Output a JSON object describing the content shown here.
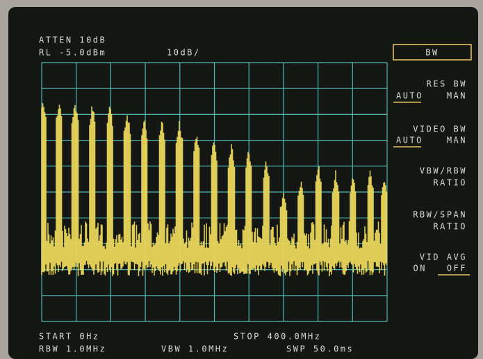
{
  "header": {
    "atten": "ATTEN 10dB",
    "ref_level": "RL -5.0dBm",
    "scale": "10dB/"
  },
  "softkeys": {
    "menu": "BW",
    "res_bw": {
      "label": "RES BW",
      "auto": "AUTO",
      "man": "MAN"
    },
    "video_bw": {
      "label": "VIDEO BW",
      "auto": "AUTO",
      "man": "MAN"
    },
    "vbw_rbw": {
      "label": "VBW/RBW",
      "sub": "RATIO"
    },
    "rbw_span": {
      "label": "RBW/SPAN",
      "sub": "RATIO"
    },
    "vid_avg": {
      "label": "VID AVG",
      "on": "ON",
      "off": "OFF"
    }
  },
  "footer": {
    "start": "START 0Hz",
    "stop": "STOP 400.0MHz",
    "rbw": "RBW 1.0MHz",
    "vbw": "VBW 1.0MHz",
    "sweep": "SWP 50.0ms"
  }
}
